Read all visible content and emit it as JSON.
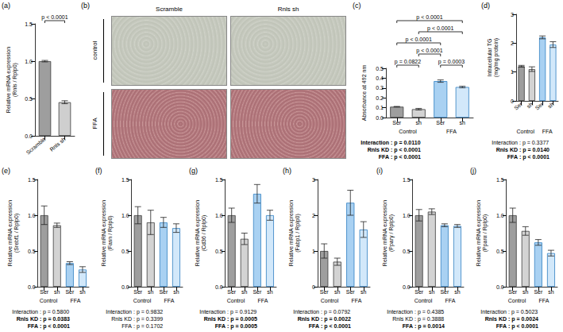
{
  "chart_data": [
    {
      "panel": "(a)",
      "type": "bar",
      "categories": [
        "Scramble",
        "Rnls sh"
      ],
      "values": [
        1.0,
        0.45
      ],
      "errors": [
        0.01,
        0.02
      ],
      "colors": [
        "#9e9e9e",
        "#cfcfcf"
      ],
      "y_label": "Relative mRNA expression (Rnls / Rplp0)",
      "ylim": [
        0,
        1.5
      ],
      "yticks": [
        {
          "value": 0,
          "label": "0.0"
        },
        {
          "value": 0.5,
          "label": "0.5"
        },
        {
          "value": 1,
          "label": "1.0"
        },
        {
          "value": 1.5,
          "label": "1.5"
        }
      ],
      "comparisons": [
        {
          "pair": [
            0,
            1
          ],
          "text": "p < 0.0001"
        }
      ]
    },
    {
      "panel": "(c)",
      "type": "bar",
      "categories": [
        "Ser",
        "sh",
        "Ser",
        "sh"
      ],
      "groups": [
        "Control",
        "FFA"
      ],
      "values": [
        0.11,
        0.085,
        0.37,
        0.31
      ],
      "errors": [
        0.003,
        0.008,
        0.012,
        0.008
      ],
      "colors": [
        "#9e9e9e",
        "#d3d3d3",
        "#a9d1f2",
        "#d2e8fa"
      ],
      "y_label": "Absorbance at 492 nm",
      "ylim": [
        0,
        0.5
      ],
      "yticks": [
        {
          "value": 0,
          "label": "0.0"
        },
        {
          "value": 0.1,
          "label": "0.1"
        },
        {
          "value": 0.2,
          "label": "0.2"
        },
        {
          "value": 0.3,
          "label": "0.3"
        },
        {
          "value": 0.4,
          "label": "0.4"
        },
        {
          "value": 0.5,
          "label": "0.5"
        }
      ],
      "comparisons": [
        {
          "pair": [
            0,
            1
          ],
          "text": "p = 0.0822"
        },
        {
          "pair": [
            2,
            3
          ],
          "text": "p = 0.0003"
        },
        {
          "pair": [
            1,
            2
          ],
          "text": "p < 0.0001"
        },
        {
          "pair": [
            0,
            2
          ],
          "text": "p < 0.0001"
        },
        {
          "pair": [
            1,
            3
          ],
          "text": "p < 0.0001"
        },
        {
          "pair": [
            0,
            3
          ],
          "text": "p < 0.0001"
        }
      ],
      "stats": [
        "Interaction : p = 0.0110",
        "Rnls KD : p < 0.0001",
        "FFA : p < 0.0001"
      ]
    },
    {
      "panel": "(d)",
      "type": "bar",
      "categories": [
        "Ser",
        "sh",
        "Ser",
        "sh"
      ],
      "groups": [
        "Control",
        "FFA"
      ],
      "values": [
        1.2,
        1.1,
        2.2,
        1.95
      ],
      "errors": [
        0.03,
        0.08,
        0.05,
        0.1
      ],
      "colors": [
        "#9e9e9e",
        "#d3d3d3",
        "#a9d1f2",
        "#d2e8fa"
      ],
      "y_label": "Intracellular TG (mg/mg protein)",
      "ylim": [
        0,
        3
      ],
      "yticks": [
        0,
        1,
        2,
        3
      ],
      "stats": [
        "Interaction : p = 0.3377",
        "Rnls KD : p = 0.0140",
        "FFA : p < 0.0001"
      ]
    },
    {
      "panel": "(e)",
      "type": "bar",
      "categories": [
        "Ser",
        "sh",
        "Ser",
        "sh"
      ],
      "groups": [
        "Control",
        "FFA"
      ],
      "values": [
        1.0,
        0.86,
        0.33,
        0.24
      ],
      "errors": [
        0.13,
        0.03,
        0.02,
        0.04
      ],
      "colors": [
        "#9e9e9e",
        "#d3d3d3",
        "#a9d1f2",
        "#d2e8fa"
      ],
      "y_label": "Relative mRNA expression (Srebf1 / Rplp0)",
      "ylim": [
        0,
        1.5
      ],
      "yticks": [
        {
          "value": 0,
          "label": "0.0"
        },
        {
          "value": 0.5,
          "label": "0.5"
        },
        {
          "value": 1,
          "label": "1.0"
        },
        {
          "value": 1.5,
          "label": "1.5"
        }
      ],
      "stats": [
        "Interaction : p = 0.5800",
        "Rnls KD : p = 0.0383",
        "FFA : p < 0.0001"
      ]
    },
    {
      "panel": "(f)",
      "type": "bar",
      "categories": [
        "Ser",
        "sh",
        "Ser",
        "sh"
      ],
      "groups": [
        "Control",
        "FFA"
      ],
      "values": [
        1.0,
        0.9,
        0.9,
        0.82
      ],
      "errors": [
        0.12,
        0.17,
        0.07,
        0.06
      ],
      "colors": [
        "#9e9e9e",
        "#d3d3d3",
        "#a9d1f2",
        "#d2e8fa"
      ],
      "y_label": "Relative mRNA expression (Fasn / Rplp0)",
      "ylim": [
        0,
        1.5
      ],
      "yticks": [
        {
          "value": 0,
          "label": "0.0"
        },
        {
          "value": 0.5,
          "label": "0.5"
        },
        {
          "value": 1,
          "label": "1.0"
        },
        {
          "value": 1.5,
          "label": "1.5"
        }
      ],
      "stats": [
        "Interaction : p = 0.9832",
        "Rnls KD : p = 0.3399",
        "FFA : p = 0.1702"
      ]
    },
    {
      "panel": "(g)",
      "type": "bar",
      "categories": [
        "Ser",
        "sh",
        "Ser",
        "sh"
      ],
      "groups": [
        "Control",
        "FFA"
      ],
      "values": [
        1.0,
        0.67,
        1.3,
        1.0
      ],
      "errors": [
        0.1,
        0.08,
        0.13,
        0.07
      ],
      "colors": [
        "#9e9e9e",
        "#d3d3d3",
        "#a9d1f2",
        "#d2e8fa"
      ],
      "y_label": "Relative mRNA expression (Cd36 / Rplp0)",
      "ylim": [
        0,
        1.5
      ],
      "yticks": [
        {
          "value": 0,
          "label": "0.0"
        },
        {
          "value": 0.5,
          "label": "0.5"
        },
        {
          "value": 1,
          "label": "1.0"
        },
        {
          "value": 1.5,
          "label": "1.5"
        }
      ],
      "stats": [
        "Interaction : p = 0.9129",
        "Rnls KD : p = 0.0005",
        "FFA : p = 0.0005"
      ]
    },
    {
      "panel": "(h)",
      "type": "bar",
      "categories": [
        "Ser",
        "sh",
        "Ser",
        "sh"
      ],
      "groups": [
        "Control",
        "FFA"
      ],
      "values": [
        1.0,
        0.7,
        2.35,
        1.6
      ],
      "errors": [
        0.2,
        0.1,
        0.35,
        0.22
      ],
      "colors": [
        "#9e9e9e",
        "#d3d3d3",
        "#a9d1f2",
        "#d2e8fa"
      ],
      "y_label": "Relative mRNA expression (Fabp1 / Rplp0)",
      "ylim": [
        0,
        3
      ],
      "yticks": [
        0,
        1,
        2,
        3
      ],
      "stats": [
        "Interaction : p = 0.0792",
        "Rnls KD : p = 0.0022",
        "FFA : p < 0.0001"
      ]
    },
    {
      "panel": "(i)",
      "type": "bar",
      "categories": [
        "Ser",
        "sh",
        "Ser",
        "sh"
      ],
      "groups": [
        "Control",
        "FFA"
      ],
      "values": [
        1.0,
        1.05,
        0.86,
        0.85
      ],
      "errors": [
        0.08,
        0.04,
        0.02,
        0.02
      ],
      "colors": [
        "#9e9e9e",
        "#d3d3d3",
        "#a9d1f2",
        "#d2e8fa"
      ],
      "y_label": "Relative mRNA expression (Pparγ / Rplp0)",
      "ylim": [
        0,
        1.5
      ],
      "yticks": [
        {
          "value": 0,
          "label": "0.0"
        },
        {
          "value": 0.5,
          "label": "0.5"
        },
        {
          "value": 1,
          "label": "1.0"
        },
        {
          "value": 1.5,
          "label": "1.5"
        }
      ],
      "stats": [
        "Interaction : p = 0.4385",
        "Rnls KD : p = 0.3888",
        "FFA : p = 0.0014"
      ]
    },
    {
      "panel": "(j)",
      "type": "bar",
      "categories": [
        "Ser",
        "sh",
        "Ser",
        "sh"
      ],
      "groups": [
        "Control",
        "FFA"
      ],
      "values": [
        1.0,
        0.78,
        0.62,
        0.47
      ],
      "errors": [
        0.1,
        0.06,
        0.04,
        0.04
      ],
      "colors": [
        "#9e9e9e",
        "#d3d3d3",
        "#a9d1f2",
        "#d2e8fa"
      ],
      "y_label": "Relative mRNA expression (Pparα / Rplp0)",
      "ylim": [
        0,
        1.5
      ],
      "yticks": [
        {
          "value": 0,
          "label": "0.0"
        },
        {
          "value": 0.5,
          "label": "0.5"
        },
        {
          "value": 1,
          "label": "1.0"
        },
        {
          "value": 1.5,
          "label": "1.5"
        }
      ],
      "stats": [
        "Interaction : p = 0.5023",
        "Rnls KD : p = 0.0024",
        "FFA : p < 0.0001"
      ]
    }
  ],
  "image_panel": {
    "panel": "(b)",
    "columns": [
      "Scramble",
      "Rnls sh"
    ],
    "rows": [
      "control",
      "FFA"
    ]
  }
}
